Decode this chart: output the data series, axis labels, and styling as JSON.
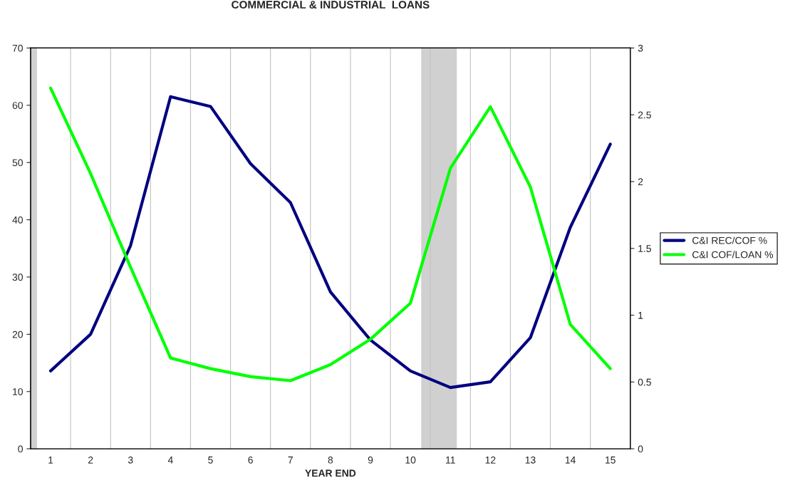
{
  "chart_data": {
    "type": "line",
    "title": "COMMERCIAL & INDUSTRIAL  LOANS",
    "xlabel": "YEAR END",
    "x": [
      1,
      2,
      3,
      4,
      5,
      6,
      7,
      8,
      9,
      10,
      11,
      12,
      13,
      14,
      15
    ],
    "xlim": [
      0.5,
      15.5
    ],
    "xticks": [
      1,
      2,
      3,
      4,
      5,
      6,
      7,
      8,
      9,
      10,
      11,
      12,
      13,
      14,
      15,
      {
        "value": 1.5,
        "label": null
      },
      {
        "value": 2.5,
        "label": null
      },
      {
        "value": 3.5,
        "label": null
      },
      {
        "value": 4.5,
        "label": null
      },
      {
        "value": 5.5,
        "label": null
      },
      {
        "value": 6.5,
        "label": null
      },
      {
        "value": 7.5,
        "label": null
      },
      {
        "value": 8.5,
        "label": null
      },
      {
        "value": 9.5,
        "label": null
      },
      {
        "value": 10.5,
        "label": null
      },
      {
        "value": 11.5,
        "label": null
      },
      {
        "value": 12.5,
        "label": null
      },
      {
        "value": 13.5,
        "label": null
      },
      {
        "value": 14.5,
        "label": null
      }
    ],
    "ylim": [
      0,
      70
    ],
    "yticks": [
      0,
      10,
      20,
      30,
      40,
      50,
      60,
      70
    ],
    "y2lim": [
      0,
      3
    ],
    "y2ticks": [
      0,
      0.5,
      1,
      1.5,
      2,
      2.5,
      3
    ],
    "series": [
      {
        "name": "C&I REC/COF %",
        "color": "#000080",
        "values": [
          13.6,
          20,
          35.5,
          61.5,
          59.8,
          49.8,
          43,
          27.4,
          19,
          13.6,
          10.7,
          11.7,
          19.4,
          38.7,
          53.2
        ]
      },
      {
        "name": "C&I COF/LOAN %",
        "color": "#00ff00",
        "axis": "y2",
        "values": [
          2.7,
          2.06,
          1.36,
          0.68,
          0.6,
          0.54,
          0.51,
          0.63,
          0.82,
          1.09,
          2.1,
          2.56,
          1.96,
          0.93,
          0.6
        ]
      }
    ],
    "bands": [
      {
        "axis": "x",
        "from": 0.5,
        "to": 0.66,
        "color": "#c0c0c0"
      },
      {
        "axis": "x",
        "from": 10.27,
        "to": 11.16,
        "color": "#c0c0c0"
      }
    ],
    "grid": "x",
    "legend": "right",
    "marker": "none",
    "line_style": "solid"
  }
}
